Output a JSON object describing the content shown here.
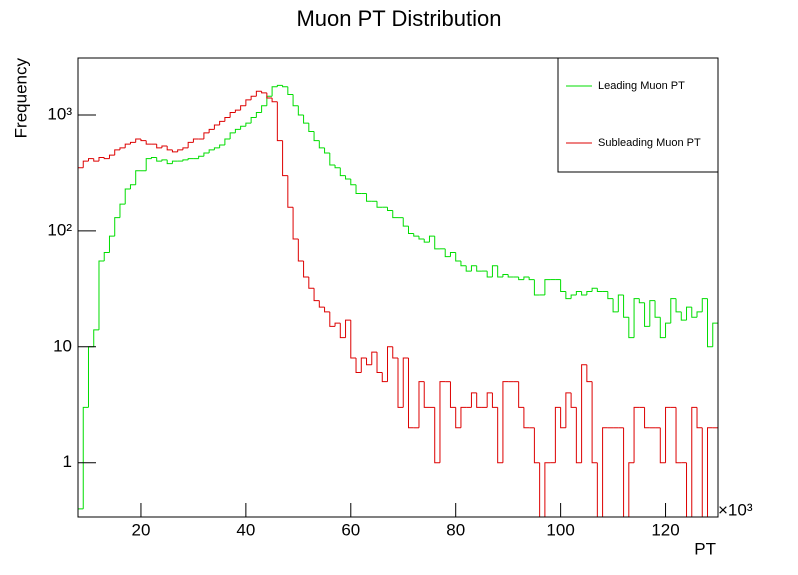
{
  "chart_data": {
    "type": "histogram",
    "title": "Muon PT Distribution",
    "x_label": "PT",
    "y_label": "Frequency",
    "x_annotation": "×10³",
    "log_y": true,
    "legend": "top-right",
    "xlim": [
      8,
      130
    ],
    "ylim": [
      0.34,
      3100
    ],
    "xticks": [
      20,
      40,
      60,
      80,
      100,
      120
    ],
    "yticks": [
      1,
      10,
      {
        "value": 100,
        "label": "10²"
      },
      {
        "value": 1000,
        "label": "10³"
      }
    ],
    "bins": [
      8,
      9,
      10,
      11,
      12,
      13,
      14,
      15,
      16,
      17,
      18,
      19,
      20,
      21,
      22,
      23,
      24,
      25,
      26,
      27,
      28,
      29,
      30,
      31,
      32,
      33,
      34,
      35,
      36,
      37,
      38,
      39,
      40,
      41,
      42,
      43,
      44,
      45,
      46,
      47,
      48,
      49,
      50,
      51,
      52,
      53,
      54,
      55,
      56,
      57,
      58,
      59,
      60,
      61,
      62,
      63,
      64,
      65,
      66,
      67,
      68,
      69,
      70,
      71,
      72,
      73,
      74,
      75,
      76,
      77,
      78,
      79,
      80,
      81,
      82,
      83,
      84,
      85,
      86,
      87,
      88,
      89,
      90,
      91,
      92,
      93,
      94,
      95,
      96,
      97,
      98,
      99,
      100,
      101,
      102,
      103,
      104,
      105,
      106,
      107,
      108,
      109,
      110,
      111,
      112,
      113,
      114,
      115,
      116,
      117,
      118,
      119,
      120,
      121,
      122,
      123,
      124,
      125,
      126,
      127,
      128,
      129,
      130
    ],
    "series": [
      {
        "name": "Leading Muon PT",
        "color": "#00dd00",
        "values": [
          0.4,
          3,
          10,
          14,
          55,
          65,
          90,
          130,
          170,
          230,
          250,
          330,
          330,
          420,
          430,
          400,
          410,
          380,
          400,
          400,
          410,
          420,
          420,
          440,
          470,
          500,
          520,
          550,
          620,
          700,
          750,
          800,
          850,
          950,
          1050,
          1200,
          1450,
          1750,
          1800,
          1750,
          1500,
          1200,
          1000,
          850,
          720,
          600,
          520,
          470,
          370,
          350,
          300,
          280,
          250,
          210,
          210,
          180,
          180,
          160,
          160,
          150,
          130,
          130,
          110,
          95,
          90,
          85,
          80,
          90,
          70,
          70,
          60,
          65,
          55,
          50,
          45,
          50,
          45,
          45,
          40,
          50,
          40,
          42,
          40,
          40,
          38,
          40,
          38,
          28,
          28,
          38,
          38,
          38,
          30,
          26,
          28,
          30,
          28,
          30,
          32,
          30,
          30,
          26,
          20,
          28,
          18,
          12,
          26,
          24,
          15,
          25,
          18,
          12,
          16,
          26,
          20,
          17,
          22,
          18,
          20,
          26,
          10,
          16
        ]
      },
      {
        "name": "Subleading Muon PT",
        "color": "#dd0000",
        "values": [
          350,
          400,
          420,
          400,
          430,
          420,
          450,
          500,
          520,
          560,
          580,
          620,
          600,
          560,
          560,
          520,
          540,
          500,
          480,
          500,
          520,
          580,
          620,
          620,
          700,
          750,
          820,
          880,
          950,
          1050,
          1100,
          1200,
          1350,
          1450,
          1600,
          1550,
          1400,
          1300,
          600,
          300,
          160,
          85,
          55,
          40,
          32,
          25,
          22,
          20,
          15,
          16,
          12,
          17,
          8,
          6,
          8,
          7,
          9,
          6,
          5,
          10,
          8,
          3,
          8,
          2,
          2,
          5,
          3,
          3,
          1,
          5,
          5,
          3,
          2,
          3,
          3,
          4,
          3,
          3,
          4,
          3,
          1,
          5,
          5,
          5,
          3,
          2,
          2,
          1,
          0,
          1,
          1,
          3,
          2,
          4,
          3,
          1,
          7,
          5,
          1,
          0,
          2,
          2,
          2,
          2,
          0,
          1,
          3,
          3,
          2,
          2,
          2,
          1,
          3,
          3,
          1,
          1,
          0,
          3,
          2,
          0,
          2,
          2
        ]
      }
    ]
  }
}
